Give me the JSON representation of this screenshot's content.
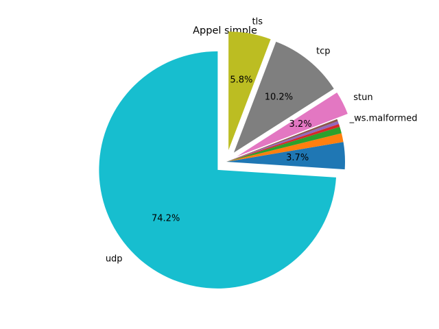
{
  "chart_data": {
    "type": "pie",
    "title": "Appel simple",
    "slices": [
      {
        "label": "udp",
        "value": 74.2,
        "pct_label": "74.2%",
        "color": "#17becf",
        "explode": true
      },
      {
        "label": "",
        "value": 3.7,
        "pct_label": "3.7%",
        "color": "#1f77b4",
        "explode": false
      },
      {
        "label": "",
        "value": 1.2,
        "pct_label": "",
        "color": "#ff7f0e",
        "explode": false
      },
      {
        "label": "",
        "value": 0.9,
        "pct_label": "",
        "color": "#2ca02c",
        "explode": false
      },
      {
        "label": "",
        "value": 0.4,
        "pct_label": "",
        "color": "#d62728",
        "explode": false
      },
      {
        "label": "_ws.malformed",
        "value": 0.4,
        "pct_label": "",
        "color": "#9467bd",
        "explode": false
      },
      {
        "label": "",
        "value": 0.3,
        "pct_label": "",
        "color": "#8c564b",
        "explode": false
      },
      {
        "label": "stun",
        "value": 3.2,
        "pct_label": "3.2%",
        "color": "#e377c2",
        "explode": true
      },
      {
        "label": "tcp",
        "value": 10.2,
        "pct_label": "10.2%",
        "color": "#7f7f7f",
        "explode": true
      },
      {
        "label": "tls",
        "value": 5.8,
        "pct_label": "5.8%",
        "color": "#bcbd22",
        "explode": true
      }
    ]
  }
}
